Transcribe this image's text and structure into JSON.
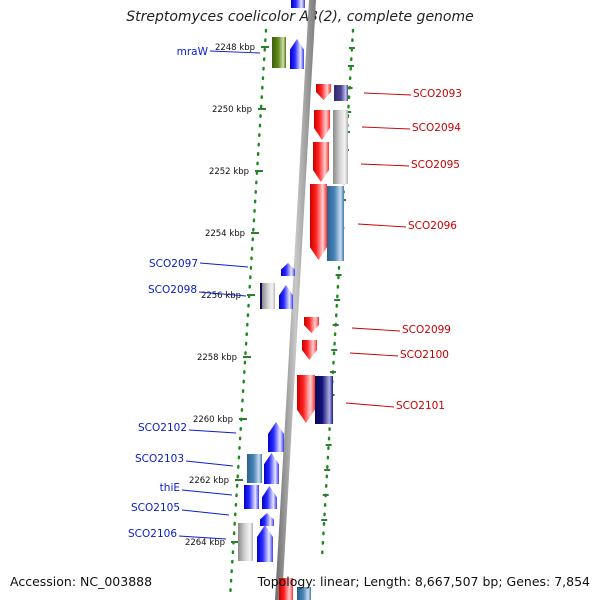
{
  "title": "Streptomyces coelicolor A3(2), complete genome",
  "accession": "Accession: NC_003888",
  "summary": "Topology: linear; Length: 8,667,507 bp; Genes: 7,854",
  "colors": {
    "tick": "#2e7d32",
    "dots": "#1b8a1b",
    "axis": "#8a8a8a",
    "left_label": "#0b20c8",
    "right_label": "#cc0000",
    "forward_gene": "#1010ff",
    "reverse_gene": "#ee1010"
  },
  "kbp_ticks": [
    {
      "label": "2248 kbp",
      "pos": 2248
    },
    {
      "label": "2250 kbp",
      "pos": 2250
    },
    {
      "label": "2252 kbp",
      "pos": 2252
    },
    {
      "label": "2254 kbp",
      "pos": 2254
    },
    {
      "label": "2256 kbp",
      "pos": 2256
    },
    {
      "label": "2258 kbp",
      "pos": 2258
    },
    {
      "label": "2260 kbp",
      "pos": 2260
    },
    {
      "label": "2262 kbp",
      "pos": 2262
    },
    {
      "label": "2264 kbp",
      "pos": 2264
    }
  ],
  "left_labels": [
    "mraW",
    "SCO2097",
    "SCO2098",
    "SCO2102",
    "SCO2103",
    "thiE",
    "SCO2105",
    "SCO2106"
  ],
  "right_labels": [
    "SCO2093",
    "SCO2094",
    "SCO2095",
    "SCO2096",
    "SCO2099",
    "SCO2100",
    "SCO2101"
  ]
}
